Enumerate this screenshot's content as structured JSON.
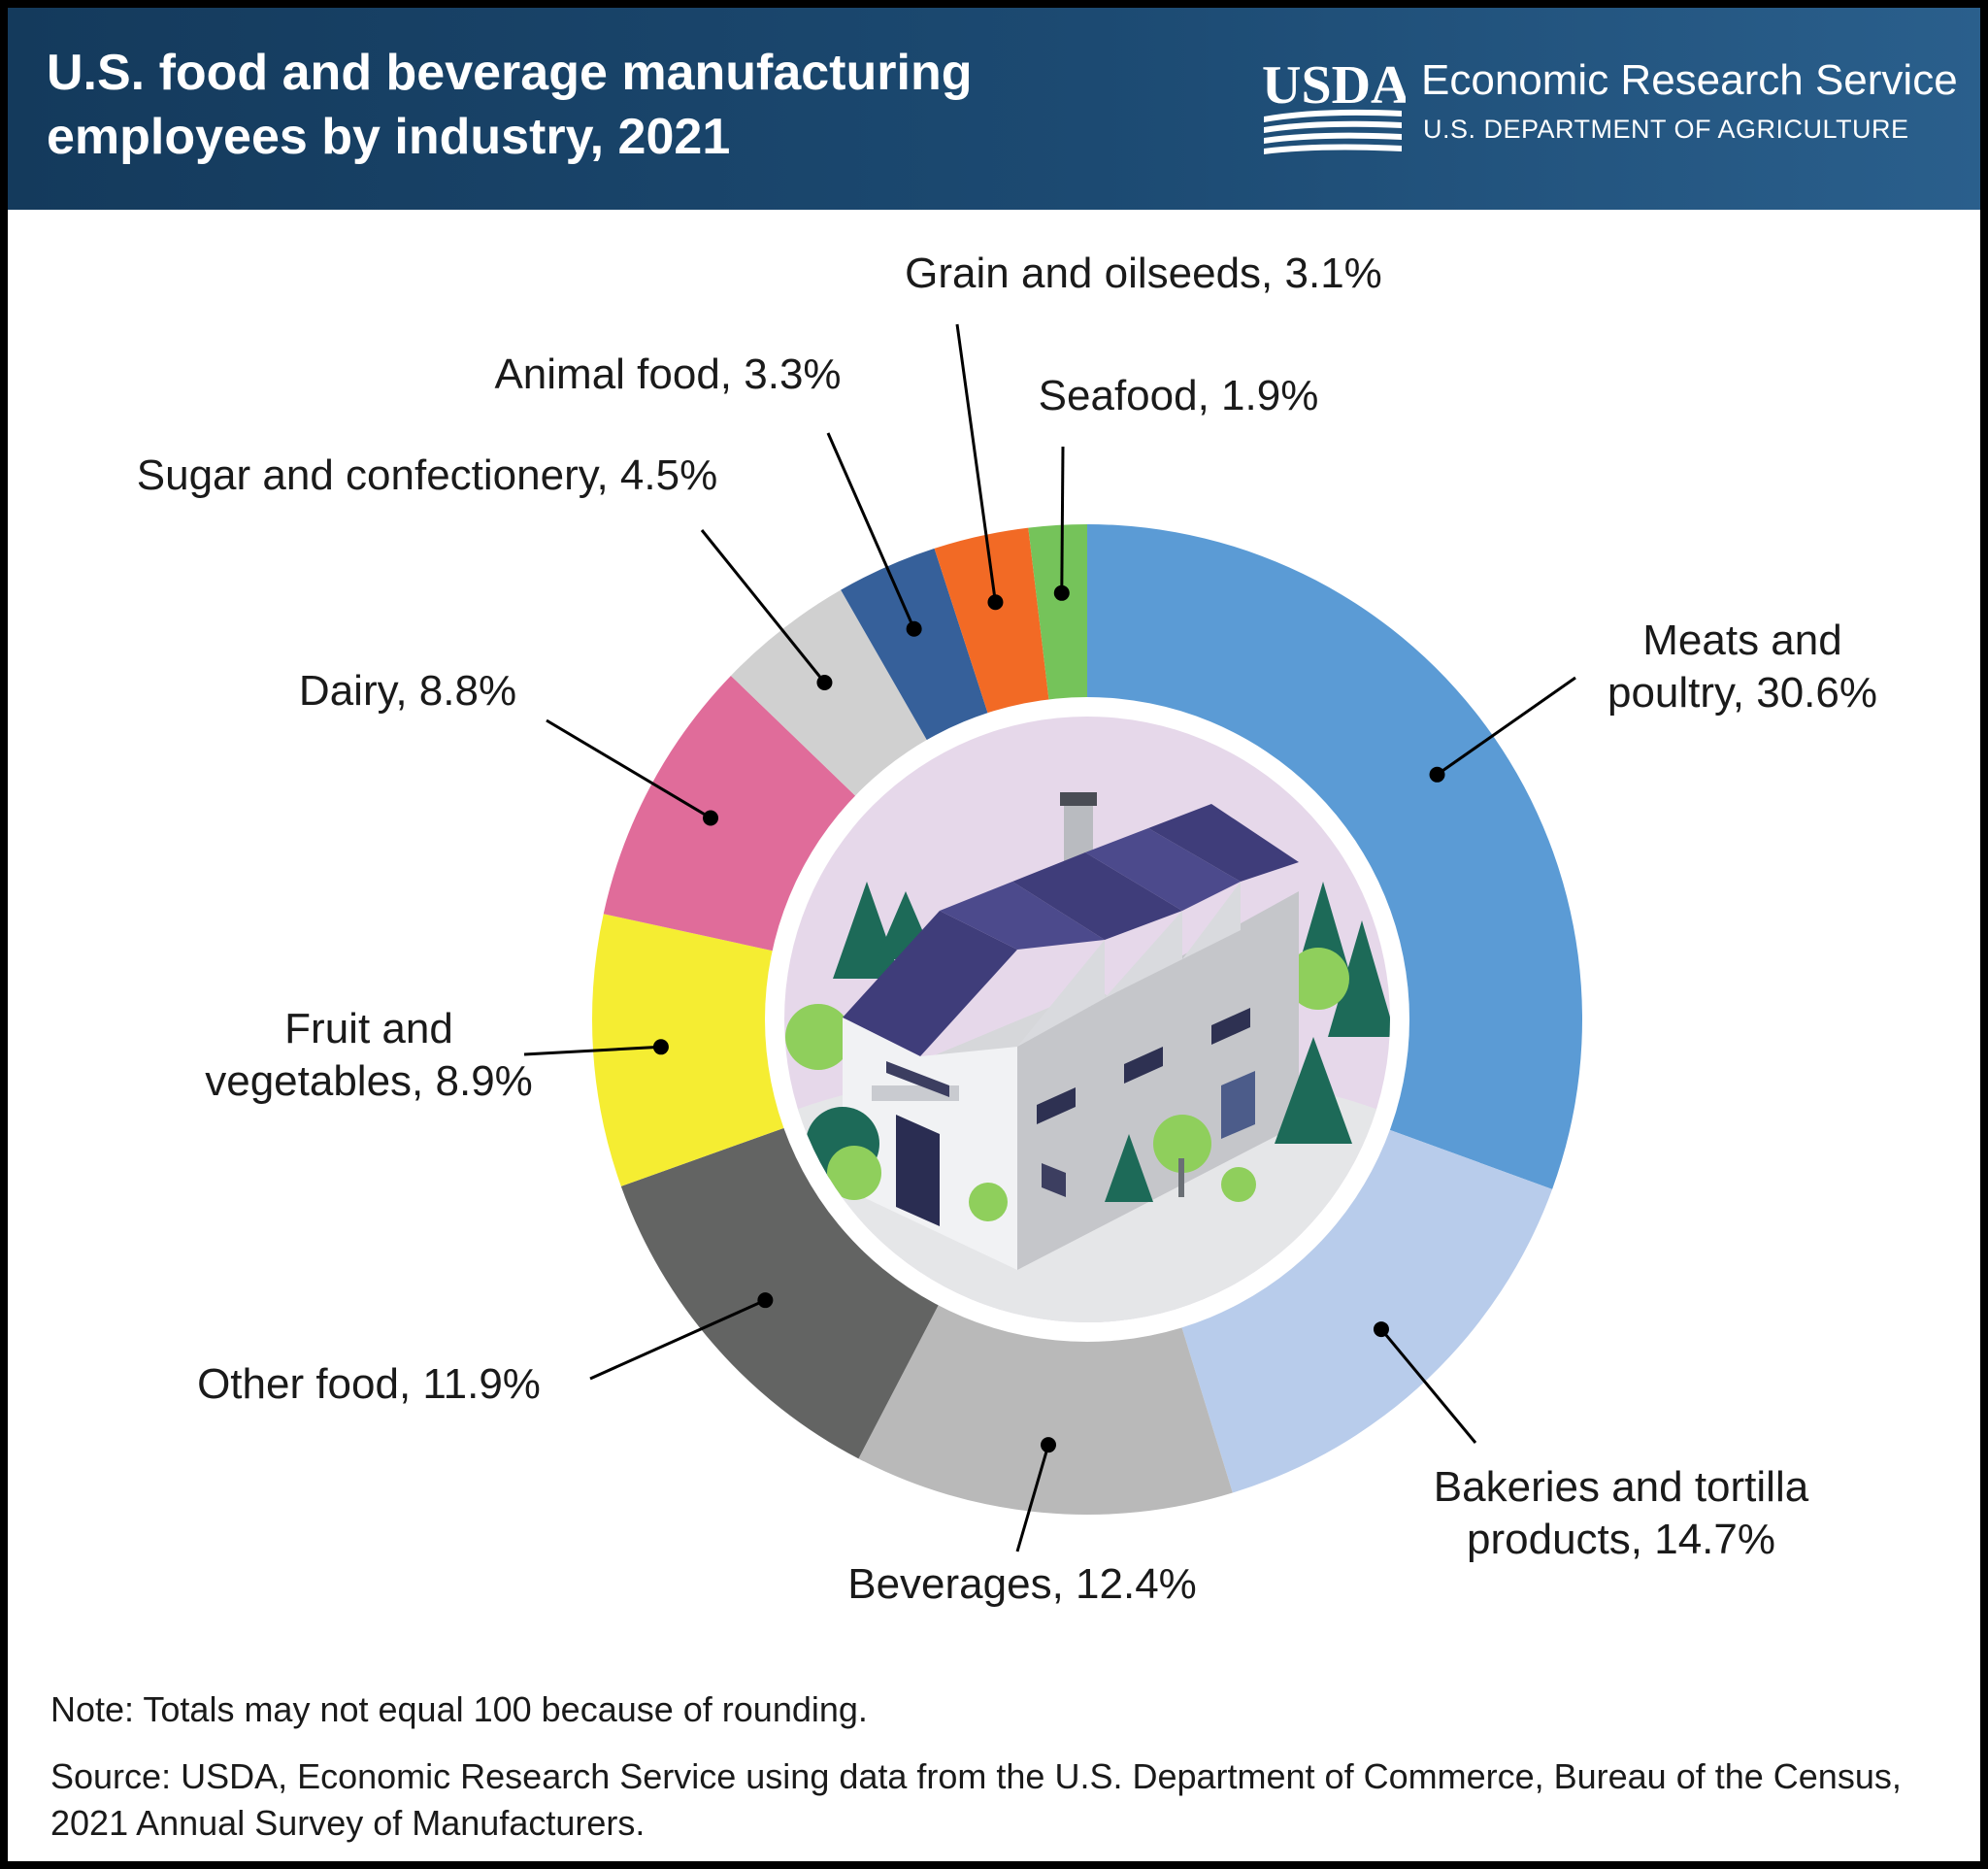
{
  "header": {
    "title_line1": "U.S. food and beverage manufacturing",
    "title_line2": "employees by industry, 2021",
    "logo_text": "USDA",
    "agency": "Economic Research Service",
    "department": "U.S. DEPARTMENT OF AGRICULTURE"
  },
  "chart_data": {
    "type": "pie",
    "style": "donut",
    "unit": "%",
    "slices": [
      {
        "label": "Meats and poultry",
        "value": 30.6,
        "color": "#5b9bd5",
        "text": [
          "Meats and",
          "poultry, 30.6%"
        ]
      },
      {
        "label": "Bakeries and tortilla products",
        "value": 14.7,
        "color": "#b8cceb",
        "text": [
          "Bakeries and tortilla",
          "products, 14.7%"
        ]
      },
      {
        "label": "Beverages",
        "value": 12.4,
        "color": "#b9b9b9",
        "text": [
          "Beverages, 12.4%"
        ]
      },
      {
        "label": "Other food",
        "value": 11.9,
        "color": "#636463",
        "text": [
          "Other food, 11.9%"
        ]
      },
      {
        "label": "Fruit and vegetables",
        "value": 8.9,
        "color": "#f5ed32",
        "text": [
          "Fruit and",
          "vegetables, 8.9%"
        ]
      },
      {
        "label": "Dairy",
        "value": 8.8,
        "color": "#e06c9a",
        "text": [
          "Dairy, 8.8%"
        ]
      },
      {
        "label": "Sugar and confectionery",
        "value": 4.5,
        "color": "#d0d0d0",
        "text": [
          "Sugar and confectionery, 4.5%"
        ]
      },
      {
        "label": "Animal food",
        "value": 3.3,
        "color": "#36609a",
        "text": [
          "Animal food, 3.3%"
        ]
      },
      {
        "label": "Grain and oilseeds",
        "value": 3.1,
        "color": "#f26a25",
        "text": [
          "Grain and oilseeds, 3.1%"
        ]
      },
      {
        "label": "Seafood",
        "value": 1.9,
        "color": "#75c35a",
        "text": [
          "Seafood, 1.9%"
        ]
      }
    ]
  },
  "footer": {
    "note": "Note: Totals may not equal 100 because of rounding.",
    "source": "Source: USDA, Economic Research Service using data from the U.S. Department of Commerce, Bureau of the Census, 2021 Annual Survey of Manufacturers."
  }
}
